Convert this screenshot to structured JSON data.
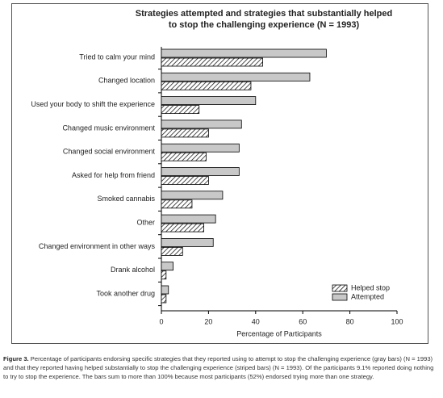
{
  "chart_data": {
    "type": "hbar",
    "title": [
      "Strategies attempted and strategies that substantially helped",
      "to stop the challenging experience (N = 1993)"
    ],
    "x_label": "Percentage of Participants",
    "categories": [
      "Tried to calm your mind",
      "Changed location",
      "Used your body to shift the experience",
      "Changed music environment",
      "Changed social environment",
      "Asked for help from friend",
      "Smoked cannabis",
      "Other",
      "Changed environment in other ways",
      "Drank alcohol",
      "Took another drug"
    ],
    "series": [
      {
        "name": "Helped stop",
        "color": "#000000",
        "values": [
          43,
          38,
          16,
          20,
          19,
          20,
          13,
          18,
          9,
          2,
          2
        ]
      },
      {
        "name": "Attempted",
        "color": "#c8c8c8",
        "values": [
          70,
          63,
          40,
          34,
          33,
          33,
          26,
          23,
          22,
          5,
          3
        ]
      }
    ],
    "xlim": [
      0,
      100
    ],
    "xticks": [
      0,
      20,
      40,
      60,
      80,
      100
    ],
    "legend": "lower right"
  },
  "caption": {
    "label": "Figure 3.",
    "text": "Percentage of participants endorsing specific strategies that they reported using to attempt to stop the challenging experience (gray bars) (N = 1993) and that they reported having helped substantially to stop the challenging experience (striped bars) (N = 1993). Of the participants 9.1% reported doing nothing to try to stop the experience. The bars sum to more than 100% because most participants (52%) endorsed trying more than one strategy."
  }
}
